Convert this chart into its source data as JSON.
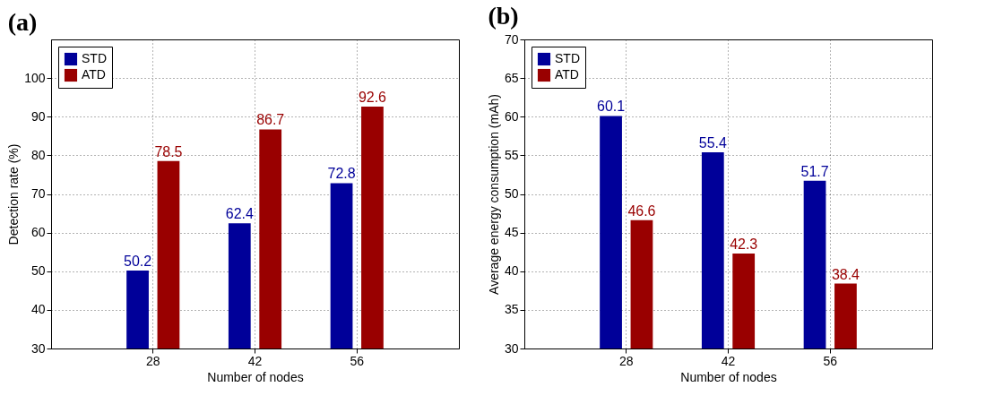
{
  "chart_data": [
    {
      "type": "bar",
      "title": "(a)",
      "xlabel": "Number of nodes",
      "ylabel": "Detection rate (%)",
      "categories": [
        "28",
        "42",
        "56"
      ],
      "series": [
        {
          "name": "STD",
          "color": "#000099",
          "values": [
            50.2,
            62.4,
            72.8
          ]
        },
        {
          "name": "ATD",
          "color": "#990000",
          "values": [
            78.5,
            86.7,
            92.6
          ]
        }
      ],
      "ylim": [
        30,
        110
      ],
      "yticks": [
        30,
        40,
        50,
        60,
        70,
        80,
        90,
        100
      ],
      "grid": true,
      "legend": "top left",
      "data_labels": true
    },
    {
      "type": "bar",
      "title": "(b)",
      "xlabel": "Number of nodes",
      "ylabel": "Average energy consumption (mAh)",
      "categories": [
        "28",
        "42",
        "56"
      ],
      "series": [
        {
          "name": "STD",
          "color": "#000099",
          "values": [
            60.1,
            55.4,
            51.7
          ]
        },
        {
          "name": "ATD",
          "color": "#990000",
          "values": [
            46.6,
            42.3,
            38.4
          ]
        }
      ],
      "ylim": [
        30,
        70
      ],
      "yticks": [
        30,
        35,
        40,
        45,
        50,
        55,
        60,
        65,
        70
      ],
      "grid": true,
      "legend": "top left",
      "data_labels": true
    }
  ]
}
